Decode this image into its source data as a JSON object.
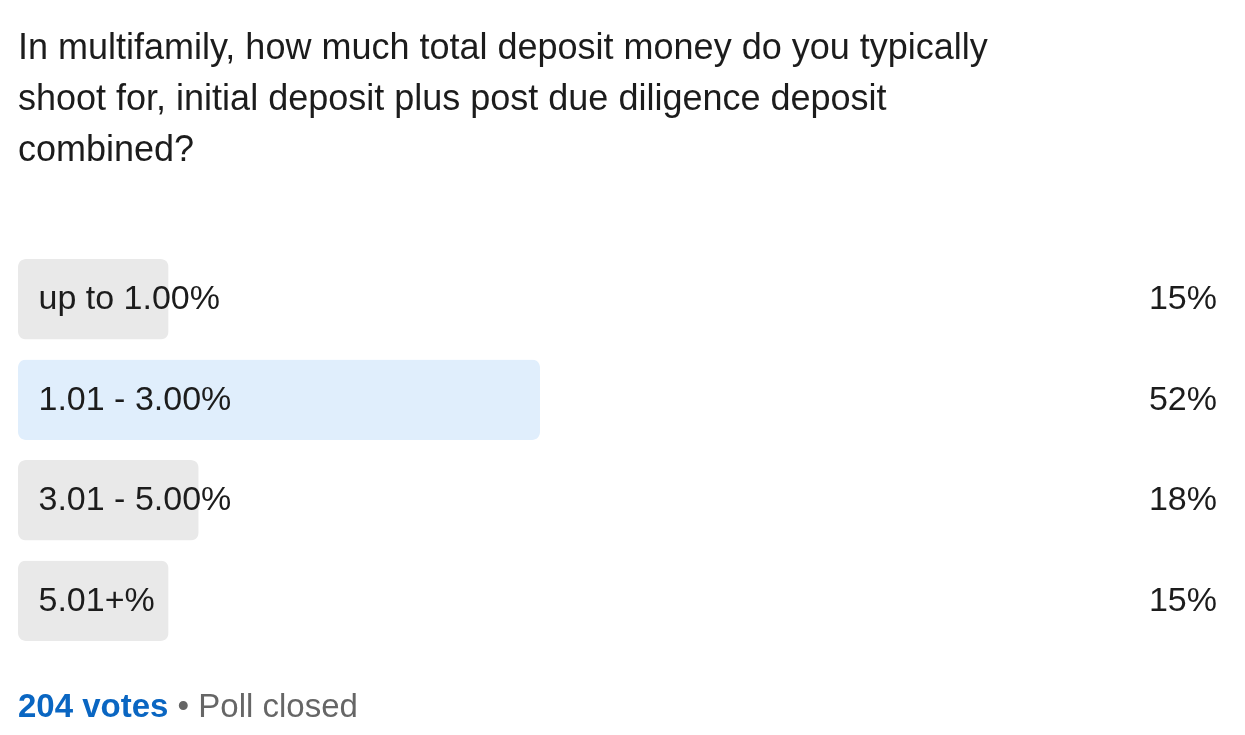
{
  "chart_data": {
    "type": "bar",
    "orientation": "horizontal",
    "title": "In multifamily, how much total deposit money do you typically shoot for, initial deposit plus post due diligence deposit combined?",
    "categories": [
      "up to 1.00%",
      "1.01 - 3.00%",
      "3.01 - 5.00%",
      "5.01+%"
    ],
    "values": [
      15,
      52,
      18,
      15
    ],
    "colors": [
      "#e9e9e9",
      "#e0eefc",
      "#e9e9e9",
      "#e9e9e9"
    ],
    "value_labels": [
      "15%",
      "52%",
      "18%",
      "15%"
    ],
    "tick_labels": "y",
    "annotations": [
      "204 votes",
      "• Poll closed"
    ]
  }
}
